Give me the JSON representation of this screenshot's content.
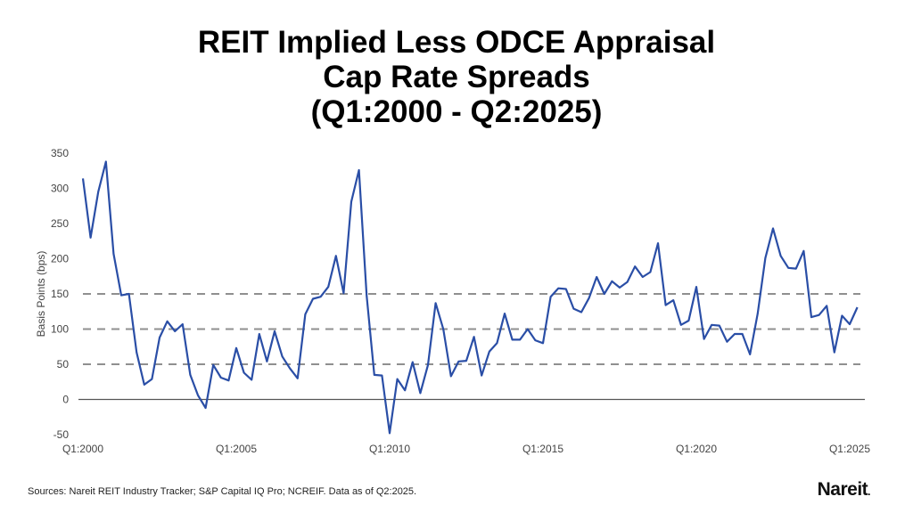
{
  "chart_data": {
    "type": "line",
    "title_lines": [
      "REIT Implied Less ODCE Appraisal",
      "Cap Rate Spreads",
      "(Q1:2000 - Q2:2025)"
    ],
    "ylabel": "Basis Points (bps)",
    "xlabel": "",
    "ylim": [
      -50,
      350
    ],
    "yticks": [
      350,
      300,
      250,
      200,
      150,
      100,
      50,
      0,
      -50
    ],
    "dashed_gridlines": [
      50,
      100,
      150
    ],
    "x_tick_labels": [
      "Q1:2000",
      "Q1:2005",
      "Q1:2010",
      "Q1:2015",
      "Q1:2020",
      "Q1:2025"
    ],
    "x_start": "Q1:2000",
    "x_end": "Q2:2025",
    "frequency": "quarterly",
    "line_color": "#2a4ea6",
    "values": [
      314,
      230,
      295,
      338,
      207,
      148,
      150,
      67,
      21,
      29,
      88,
      111,
      97,
      107,
      35,
      6,
      -12,
      49,
      31,
      27,
      73,
      38,
      28,
      93,
      54,
      97,
      61,
      44,
      30,
      121,
      143,
      146,
      160,
      204,
      151,
      281,
      326,
      148,
      35,
      34,
      -48,
      29,
      13,
      53,
      9,
      49,
      137,
      100,
      33,
      54,
      55,
      89,
      34,
      68,
      80,
      122,
      85,
      85,
      100,
      84,
      80,
      146,
      158,
      157,
      129,
      124,
      144,
      174,
      150,
      168,
      159,
      167,
      189,
      174,
      181,
      222,
      134,
      141,
      106,
      112,
      160,
      86,
      106,
      105,
      82,
      93,
      93,
      64,
      122,
      201,
      243,
      204,
      187,
      186,
      211,
      117,
      120,
      133,
      67,
      119,
      107,
      131
    ]
  },
  "footer": {
    "source": "Sources: Nareit REIT Industry Tracker; S&P Capital IQ Pro; NCREIF. Data as of Q2:2025.",
    "logo": "Nareit."
  }
}
